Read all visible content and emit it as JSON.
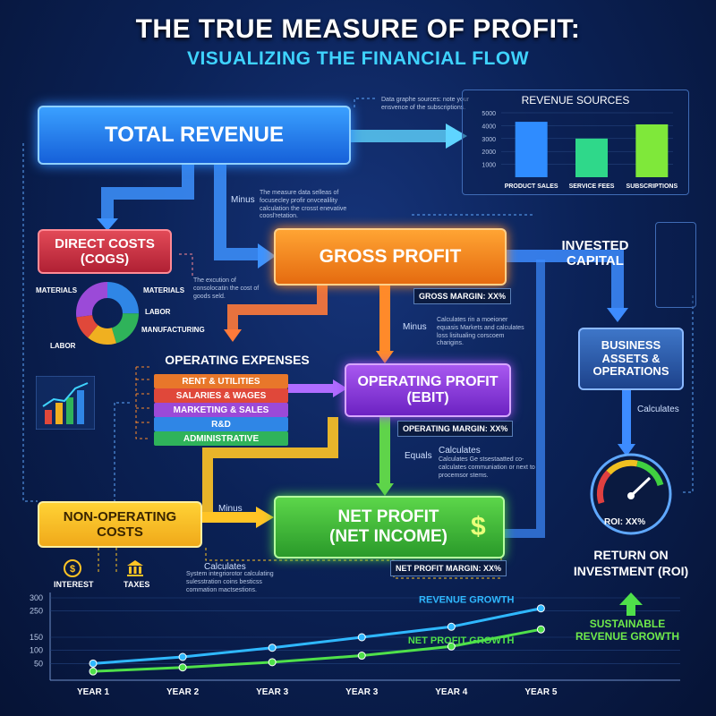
{
  "title": "THE TRUE MEASURE OF PROFIT:",
  "subtitle": "VISUALIZING THE FINANCIAL FLOW",
  "boxes": {
    "total_revenue": "TOTAL REVENUE",
    "direct_costs": "DIRECT COSTS (COGS)",
    "gross_profit": "GROSS PROFIT",
    "operating_expenses": "OPERATING EXPENSES",
    "operating_profit": "OPERATING PROFIT (EBIT)",
    "non_operating": "NON-OPERATING COSTS",
    "net_profit": "NET PROFIT (NET INCOME)",
    "invested_capital": "INVESTED CAPITAL",
    "business_assets": "BUSINESS ASSETS & OPERATIONS",
    "roi": "RETURN ON INVESTMENT (ROI)"
  },
  "margins": {
    "gross": "GROSS MARGIN: XX%",
    "operating": "OPERATING MARGIN: XX%",
    "net": "NET PROFIT MARGIN: XX%",
    "roi": "ROI: XX%"
  },
  "connectors": {
    "minus": "Minus",
    "equals": "Equals",
    "calculates": "Calculates"
  },
  "notes": {
    "sources": "Data graphe sources: note your ensvence of the subscriptions.",
    "measure": "The measure data selleas of focusecley profir onvcealility calculation the crosst enevative coosl'retation.",
    "cogs": "The excution of consolocatin the cost of goods seld.",
    "gross": "Calculates rin a moeioner equasis Markets and calculates loss lisitualing corscoem charigins.",
    "ebit": "Calculates Ge stsestaatted co-calculates communiation or next to procemsor stems.",
    "nonop": "System integriorotor calculating sulesstration coins besticss commation mactsestions."
  },
  "expenses": [
    "RENT & UTILITIES",
    "SALARIES & WAGES",
    "MARKETING & SALES",
    "R&D",
    "ADMINISTRATIVE"
  ],
  "expense_colors": [
    "#e8772a",
    "#e0483a",
    "#9b4ad8",
    "#2f86e6",
    "#2fb35a"
  ],
  "cogs_parts": [
    "MATERIALS",
    "MATERIALS",
    "LABOR",
    "MANUFACTURING",
    "LABOR"
  ],
  "cogs_icons": [
    "INTEREST",
    "TAXES"
  ],
  "currency_symbol": "$",
  "chart_data": [
    {
      "type": "bar",
      "title": "REVENUE SOURCES",
      "categories": [
        "PRODUCT SALES",
        "SERVICE FEES",
        "SUBSCRIPTIONS"
      ],
      "values": [
        4300,
        3000,
        4100
      ],
      "ylim": [
        0,
        5000
      ],
      "yticks": [
        1000,
        2000,
        3000,
        4000,
        5000
      ],
      "colors": [
        "#2f8cff",
        "#2fd88a",
        "#7fe83a"
      ]
    },
    {
      "type": "line",
      "categories": [
        "YEAR 1",
        "YEAR 2",
        "YEAR 3",
        "YEAR 3",
        "YEAR 4",
        "YEAR 5"
      ],
      "series": [
        {
          "name": "REVENUE GROWTH",
          "values": [
            50,
            75,
            110,
            150,
            190,
            260
          ],
          "color": "#2fb8ff"
        },
        {
          "name": "NET PROFIT GROWTH",
          "values": [
            20,
            35,
            55,
            80,
            115,
            180
          ],
          "color": "#4fe04a"
        }
      ],
      "ylim": [
        0,
        300
      ],
      "yticks": [
        50,
        100,
        150,
        250,
        300
      ],
      "annotation": "SUSTAINABLE REVENUE GROWTH"
    }
  ],
  "colors": {
    "accent": "#3fd3ff",
    "background": "#0b2257"
  }
}
